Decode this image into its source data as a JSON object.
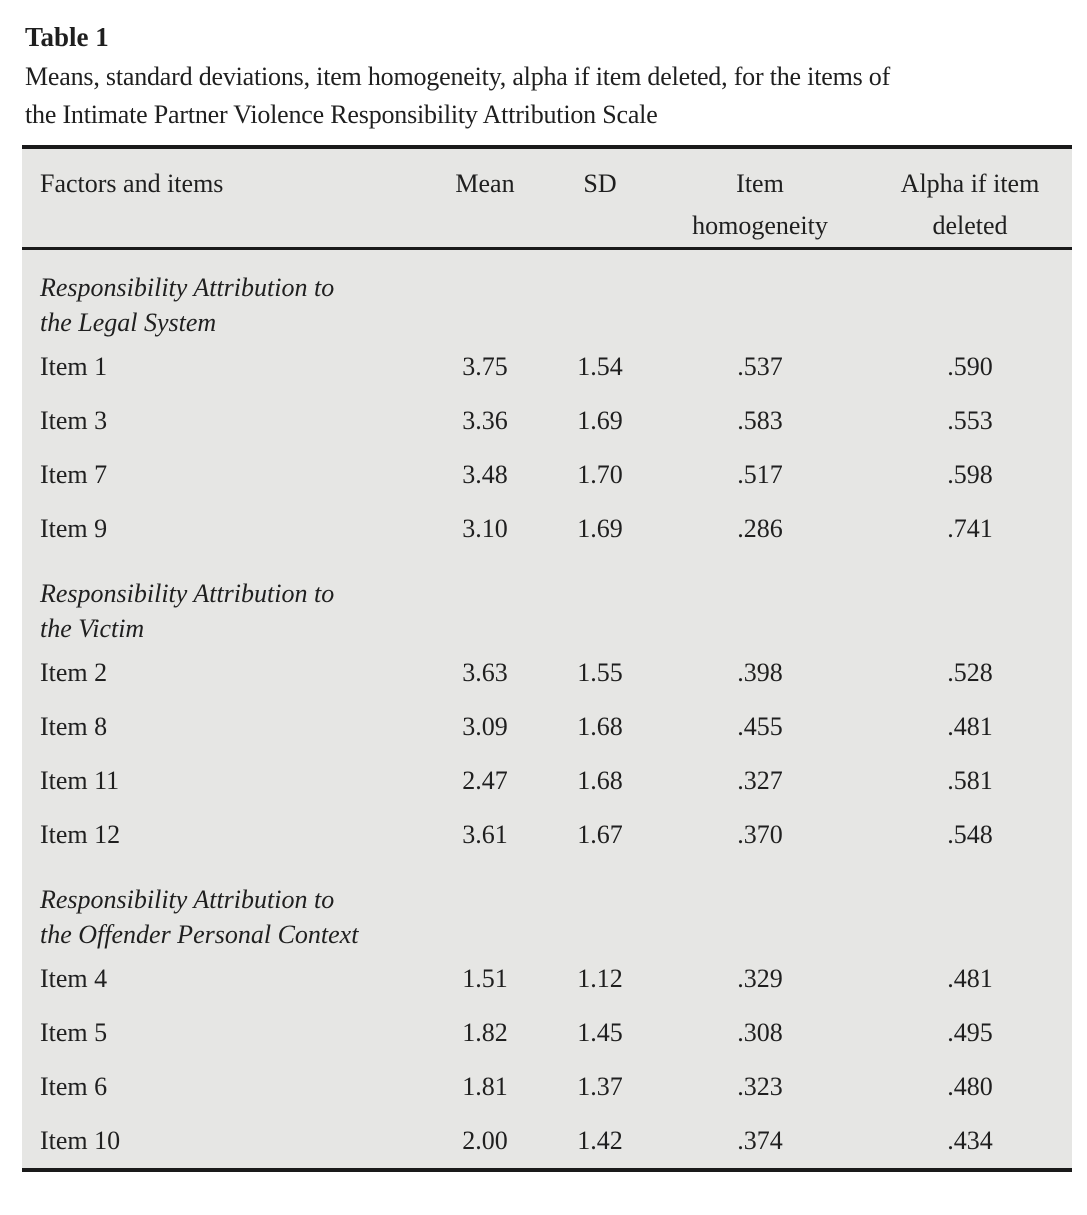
{
  "page": {
    "table_label": "Table 1",
    "caption_lines": [
      "Means, standard deviations, item homogeneity, alpha if item deleted, for the items of",
      "the Intimate Partner Violence Responsibility Attribution Scale"
    ]
  },
  "table": {
    "columns": {
      "factors": "Factors and items",
      "mean": "Mean",
      "sd": "SD",
      "homogeneity_lines": [
        "Item",
        "homogeneity"
      ],
      "alpha_lines": [
        "Alpha if item",
        "deleted"
      ]
    },
    "sections": [
      {
        "title_lines": [
          "Responsibility Attribution to",
          "the Legal System"
        ],
        "rows": [
          {
            "item": "Item 1",
            "mean": "3.75",
            "sd": "1.54",
            "homogeneity": ".537",
            "alpha": ".590"
          },
          {
            "item": "Item 3",
            "mean": "3.36",
            "sd": "1.69",
            "homogeneity": ".583",
            "alpha": ".553"
          },
          {
            "item": "Item 7",
            "mean": "3.48",
            "sd": "1.70",
            "homogeneity": ".517",
            "alpha": ".598"
          },
          {
            "item": "Item 9",
            "mean": "3.10",
            "sd": "1.69",
            "homogeneity": ".286",
            "alpha": ".741"
          }
        ]
      },
      {
        "title_lines": [
          "Responsibility Attribution to",
          "the Victim"
        ],
        "rows": [
          {
            "item": "Item 2",
            "mean": "3.63",
            "sd": "1.55",
            "homogeneity": ".398",
            "alpha": ".528"
          },
          {
            "item": "Item 8",
            "mean": "3.09",
            "sd": "1.68",
            "homogeneity": ".455",
            "alpha": ".481"
          },
          {
            "item": "Item 11",
            "mean": "2.47",
            "sd": "1.68",
            "homogeneity": ".327",
            "alpha": ".581"
          },
          {
            "item": "Item 12",
            "mean": "3.61",
            "sd": "1.67",
            "homogeneity": ".370",
            "alpha": ".548"
          }
        ]
      },
      {
        "title_lines": [
          "Responsibility Attribution to",
          "the Offender Personal Context"
        ],
        "rows": [
          {
            "item": "Item 4",
            "mean": "1.51",
            "sd": "1.12",
            "homogeneity": ".329",
            "alpha": ".481"
          },
          {
            "item": "Item 5",
            "mean": "1.82",
            "sd": "1.45",
            "homogeneity": ".308",
            "alpha": ".495"
          },
          {
            "item": "Item 6",
            "mean": "1.81",
            "sd": "1.37",
            "homogeneity": ".323",
            "alpha": ".480"
          },
          {
            "item": "Item 10",
            "mean": "2.00",
            "sd": "1.42",
            "homogeneity": ".374",
            "alpha": ".434"
          }
        ]
      }
    ]
  },
  "colors": {
    "table_background": "#e6e6e4",
    "rule": "#1a1a1a",
    "text": "#1f1f1f"
  }
}
